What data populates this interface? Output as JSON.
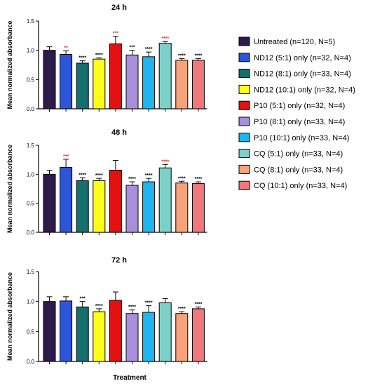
{
  "chart_data": {
    "type": "bar",
    "xlabel": "Treatment",
    "ylabel": "Mean normalized absorbance",
    "ylim": [
      0,
      1.5
    ],
    "yticks": [
      "0.0",
      "0.5",
      "1.0",
      "1.5"
    ],
    "grid": false,
    "legend_position": "right",
    "categories": [
      {
        "label": "Untreated (n=120, N=5)",
        "color": "#2b1a4a"
      },
      {
        "label": "ND12 (5:1) only (n=32, N=4)",
        "color": "#2d55d8"
      },
      {
        "label": "ND12 (8:1) only (n=33, N=4)",
        "color": "#14706e"
      },
      {
        "label": "ND12 (10:1) only (n=32, N=4)",
        "color": "#ffff1a"
      },
      {
        "label": "P10 (5:1) only (n=32, N=4)",
        "color": "#e01212"
      },
      {
        "label": "P10 (8:1) only (n=33, N=4)",
        "color": "#a88fdb"
      },
      {
        "label": "P10 (10:1) only (n=33, N=4)",
        "color": "#1fb6f0"
      },
      {
        "label": "CQ (5:1) only (n=33, N=4)",
        "color": "#7dd0c8"
      },
      {
        "label": "CQ (8:1) only (n=33, N=4)",
        "color": "#f7a27b"
      },
      {
        "label": "CQ (10:1) only (n=33, N=4)",
        "color": "#f0787a"
      }
    ],
    "panels": [
      {
        "title": "24 h",
        "values": [
          1.0,
          0.93,
          0.78,
          0.85,
          1.11,
          0.92,
          0.89,
          1.12,
          0.83,
          0.83
        ],
        "errors": [
          0.06,
          0.06,
          0.04,
          0.02,
          0.13,
          0.08,
          0.08,
          0.03,
          0.03,
          0.03
        ],
        "significance": [
          "",
          "**",
          "****",
          "****",
          "***",
          "***",
          "****",
          "****",
          "****",
          "****"
        ],
        "significance_colors": [
          "",
          "#e03030",
          "#000000",
          "#000000",
          "#e03030",
          "#000000",
          "#000000",
          "#e03030",
          "#000000",
          "#000000"
        ]
      },
      {
        "title": "48 h",
        "values": [
          1.0,
          1.12,
          0.89,
          0.89,
          1.07,
          0.81,
          0.87,
          1.11,
          0.85,
          0.84
        ],
        "errors": [
          0.07,
          0.14,
          0.05,
          0.04,
          0.17,
          0.06,
          0.06,
          0.06,
          0.03,
          0.03
        ],
        "significance": [
          "",
          "***",
          "****",
          "****",
          "",
          "****",
          "****",
          "****",
          "****",
          "****"
        ],
        "significance_colors": [
          "",
          "#e03030",
          "#000000",
          "#000000",
          "",
          "#000000",
          "#000000",
          "#e03030",
          "#000000",
          "#000000"
        ]
      },
      {
        "title": "72 h",
        "values": [
          1.0,
          1.01,
          0.91,
          0.83,
          1.02,
          0.8,
          0.82,
          0.98,
          0.8,
          0.88
        ],
        "errors": [
          0.08,
          0.07,
          0.09,
          0.05,
          0.14,
          0.06,
          0.11,
          0.07,
          0.03,
          0.03
        ],
        "significance": [
          "",
          "",
          "***",
          "****",
          "",
          "****",
          "****",
          "",
          "****",
          "****"
        ],
        "significance_colors": [
          "",
          "",
          "#000000",
          "#000000",
          "",
          "#000000",
          "#000000",
          "",
          "#000000",
          "#000000"
        ]
      }
    ]
  }
}
